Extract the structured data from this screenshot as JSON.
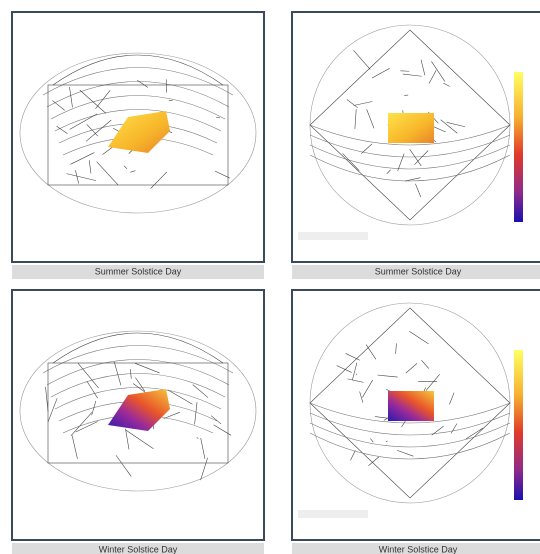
{
  "panels": [
    {
      "caption": "Summer Solstice Day"
    },
    {
      "caption": "Summer Solstice Day"
    },
    {
      "caption": "Winter Solstice Day"
    },
    {
      "caption": "Winter Solstice Day"
    }
  ]
}
